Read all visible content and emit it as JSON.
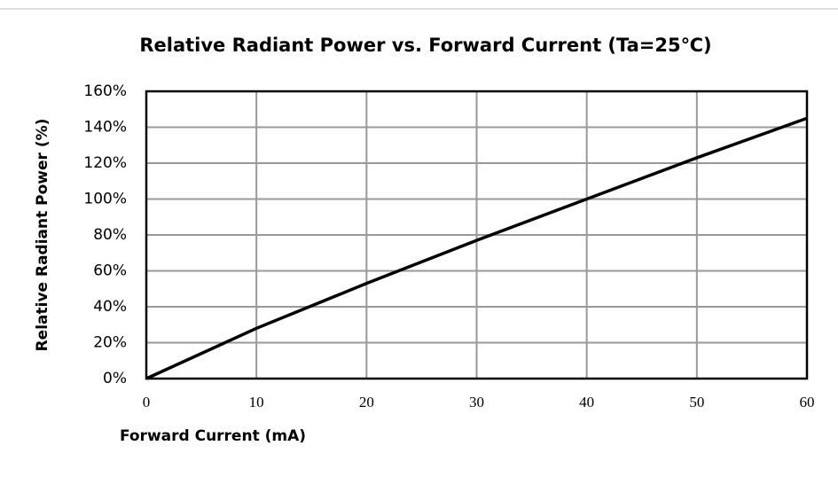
{
  "chart_data": {
    "type": "line",
    "title": "Relative Radiant Power vs. Forward Current (Ta=25℃)",
    "x_label": "Forward Current (mA)",
    "y_label": "Relative Radiant Power (%)",
    "x": [
      0,
      10,
      20,
      30,
      40,
      50,
      60
    ],
    "series": [
      {
        "name": "Relative Radiant Power",
        "color": "#000000",
        "values": [
          0,
          28,
          53,
          77,
          100,
          123,
          145
        ]
      }
    ],
    "xlim": [
      0,
      60
    ],
    "xticks": [
      0,
      10,
      20,
      30,
      40,
      50,
      60
    ],
    "ylim": [
      0,
      160
    ],
    "yticks": [
      {
        "value": 0,
        "label": "0%"
      },
      {
        "value": 20,
        "label": "20%"
      },
      {
        "value": 40,
        "label": "40%"
      },
      {
        "value": 60,
        "label": "60%"
      },
      {
        "value": 80,
        "label": "80%"
      },
      {
        "value": 100,
        "label": "100%"
      },
      {
        "value": 120,
        "label": "120%"
      },
      {
        "value": 140,
        "label": "140%"
      },
      {
        "value": 160,
        "label": "160%"
      }
    ],
    "grid": true
  }
}
